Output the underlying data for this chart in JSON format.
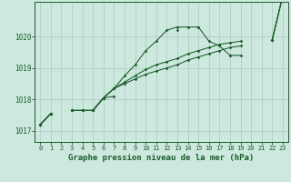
{
  "background_color": "#cde8df",
  "grid_color": "#a8ccbf",
  "line_color": "#1a5c28",
  "title": "Graphe pression niveau de la mer (hPa)",
  "title_fontsize": 6.5,
  "x_hours": [
    0,
    1,
    2,
    3,
    4,
    5,
    6,
    7,
    8,
    9,
    10,
    11,
    12,
    13,
    14,
    15,
    16,
    17,
    18,
    19,
    20,
    21,
    22,
    23
  ],
  "line1": [
    1017.2,
    1017.55,
    null,
    1017.65,
    1017.65,
    1017.65,
    1018.05,
    1018.35,
    1018.75,
    1019.1,
    1019.55,
    1019.85,
    1020.2,
    1020.3,
    1020.3,
    1020.3,
    1019.85,
    1019.7,
    1019.4,
    1019.4,
    null,
    null,
    1019.9,
    1021.3
  ],
  "line2": [
    1017.2,
    1017.55,
    null,
    1017.65,
    1017.65,
    1017.65,
    1018.05,
    1018.35,
    1018.55,
    1018.75,
    1018.95,
    1019.1,
    1019.2,
    1019.3,
    1019.45,
    1019.55,
    1019.65,
    1019.75,
    1019.8,
    1019.85,
    null,
    null,
    1019.9,
    1021.3
  ],
  "line3": [
    1017.2,
    1017.55,
    null,
    1017.65,
    1017.65,
    1017.65,
    1018.05,
    1018.35,
    1018.5,
    1018.65,
    1018.8,
    1018.9,
    1019.0,
    1019.1,
    1019.25,
    1019.35,
    1019.45,
    1019.55,
    1019.65,
    1019.7,
    null,
    null,
    1019.9,
    1021.3
  ],
  "line4": [
    1017.2,
    1017.55,
    null,
    1017.65,
    1017.65,
    1017.65,
    1018.05,
    1018.1,
    null,
    null,
    null,
    null,
    null,
    1020.2,
    null,
    1020.3,
    null,
    null,
    1019.4,
    null,
    null,
    null,
    null,
    1021.3
  ],
  "ylim_min": 1016.65,
  "ylim_max": 1021.1,
  "yticks": [
    1017,
    1018,
    1019,
    1020
  ],
  "xticks": [
    0,
    1,
    2,
    3,
    4,
    5,
    6,
    7,
    8,
    9,
    10,
    11,
    12,
    13,
    14,
    15,
    16,
    17,
    18,
    19,
    20,
    21,
    22,
    23
  ]
}
